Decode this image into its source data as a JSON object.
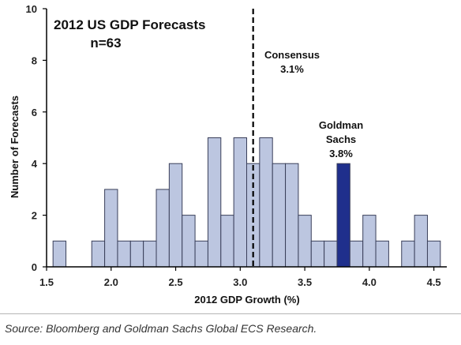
{
  "chart_data": {
    "type": "bar",
    "title": "2012 US GDP Forecasts",
    "subtitle": "n=63",
    "xlabel": "2012 GDP Growth (%)",
    "ylabel": "Number of Forecasts",
    "xlim": [
      1.5,
      4.6
    ],
    "ylim": [
      0,
      10
    ],
    "bin_width": 0.1,
    "x_ticks": [
      "1.5",
      "2.0",
      "2.5",
      "3.0",
      "3.5",
      "4.0",
      "4.5"
    ],
    "y_ticks": [
      "0",
      "2",
      "4",
      "6",
      "8",
      "10"
    ],
    "grid": false,
    "x": [
      1.6,
      1.9,
      2.0,
      2.1,
      2.2,
      2.3,
      2.4,
      2.5,
      2.6,
      2.7,
      2.8,
      2.9,
      3.0,
      3.1,
      3.2,
      3.3,
      3.4,
      3.5,
      3.6,
      3.7,
      3.8,
      3.9,
      4.0,
      4.1,
      4.3,
      4.4,
      4.5
    ],
    "values": [
      1,
      1,
      3,
      1,
      1,
      1,
      3,
      4,
      2,
      1,
      5,
      2,
      5,
      4,
      5,
      4,
      4,
      2,
      1,
      1,
      4,
      1,
      2,
      1,
      1,
      2,
      1
    ],
    "highlight": {
      "x": 3.8,
      "color": "#1f2f8c",
      "lines": [
        "Goldman",
        "Sachs",
        "3.8%"
      ]
    },
    "reference_line": {
      "x": 3.1,
      "lines": [
        "Consensus",
        "3.1%"
      ]
    },
    "bar_color": "#bcc6e0",
    "bar_edge": "#3a3f5a"
  },
  "source": "Source: Bloomberg and Goldman Sachs Global ECS Research."
}
